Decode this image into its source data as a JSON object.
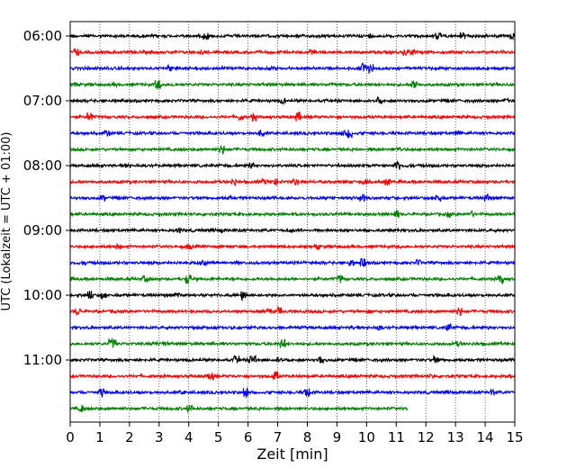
{
  "chart_data": {
    "type": "line",
    "title": "",
    "xlabel": "Zeit  [min]",
    "ylabel": "UTC (Lokalzeit = UTC + 01:00)",
    "xlim": [
      0,
      15
    ],
    "x_ticks": [
      0,
      1,
      2,
      3,
      4,
      5,
      6,
      7,
      8,
      9,
      10,
      11,
      12,
      13,
      14,
      15
    ],
    "y_tick_labels": [
      "06:00",
      "07:00",
      "08:00",
      "09:00",
      "10:00",
      "11:00"
    ],
    "grid": "vertical dotted",
    "trace_interval_min": 15,
    "trace_colors": [
      "#000000",
      "#ff0000",
      "#0000ff",
      "#008000"
    ],
    "traces": [
      {
        "start": "06:00",
        "color": "#000000",
        "end_min": 15
      },
      {
        "start": "06:15",
        "color": "#ff0000",
        "end_min": 15
      },
      {
        "start": "06:30",
        "color": "#0000ff",
        "end_min": 15
      },
      {
        "start": "06:45",
        "color": "#008000",
        "end_min": 15
      },
      {
        "start": "07:00",
        "color": "#000000",
        "end_min": 15
      },
      {
        "start": "07:15",
        "color": "#ff0000",
        "end_min": 15
      },
      {
        "start": "07:30",
        "color": "#0000ff",
        "end_min": 15
      },
      {
        "start": "07:45",
        "color": "#008000",
        "end_min": 15
      },
      {
        "start": "08:00",
        "color": "#000000",
        "end_min": 15
      },
      {
        "start": "08:15",
        "color": "#ff0000",
        "end_min": 15
      },
      {
        "start": "08:30",
        "color": "#0000ff",
        "end_min": 15
      },
      {
        "start": "08:45",
        "color": "#008000",
        "end_min": 15
      },
      {
        "start": "09:00",
        "color": "#000000",
        "end_min": 15
      },
      {
        "start": "09:15",
        "color": "#ff0000",
        "end_min": 15
      },
      {
        "start": "09:30",
        "color": "#0000ff",
        "end_min": 15
      },
      {
        "start": "09:45",
        "color": "#008000",
        "end_min": 15
      },
      {
        "start": "10:00",
        "color": "#000000",
        "end_min": 15
      },
      {
        "start": "10:15",
        "color": "#ff0000",
        "end_min": 15
      },
      {
        "start": "10:30",
        "color": "#0000ff",
        "end_min": 15
      },
      {
        "start": "10:45",
        "color": "#008000",
        "end_min": 15
      },
      {
        "start": "11:00",
        "color": "#000000",
        "end_min": 15
      },
      {
        "start": "11:15",
        "color": "#ff0000",
        "end_min": 15
      },
      {
        "start": "11:30",
        "color": "#0000ff",
        "end_min": 15
      },
      {
        "start": "11:45",
        "color": "#008000",
        "end_min": 11.4
      }
    ]
  }
}
